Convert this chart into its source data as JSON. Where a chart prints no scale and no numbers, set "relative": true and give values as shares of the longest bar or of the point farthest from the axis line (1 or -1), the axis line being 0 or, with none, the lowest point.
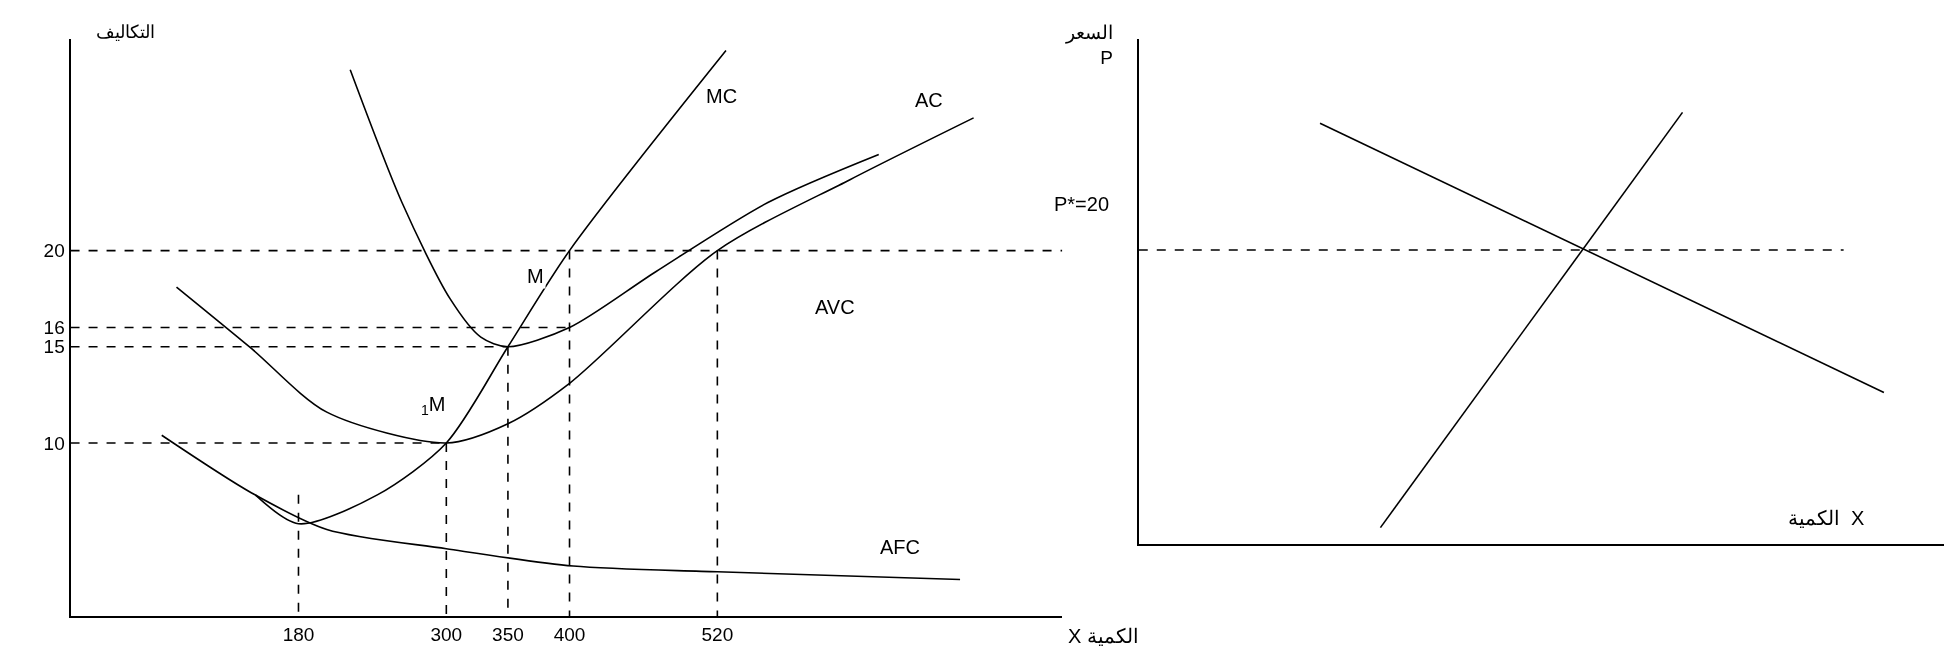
{
  "chart_data": [
    {
      "type": "line",
      "xlabel": "X الكمية",
      "ylabel": "التكاليف",
      "xlim": [
        -5,
        800
      ],
      "ylim": [
        1,
        31
      ],
      "xticks": [
        180,
        300,
        350,
        400,
        520
      ],
      "yticks": [
        20,
        16,
        15,
        10
      ],
      "series": [
        {
          "color": "#000000",
          "x": [
            145,
            180,
            244,
            300,
            350,
            400,
            527
          ],
          "values": [
            7.3,
            5.8,
            7.3,
            10,
            15,
            20,
            30.4
          ]
        },
        {
          "color": "#000000",
          "x": [
            81,
            142,
            203,
            300,
            350,
            400,
            520,
            628,
            728
          ],
          "values": [
            18.1,
            14.9,
            11.6,
            10,
            11,
            13.1,
            20,
            23.7,
            26.9
          ]
        },
        {
          "color": "#000000",
          "x": [
            222,
            264,
            303,
            328,
            350,
            400,
            470,
            561,
            651
          ],
          "values": [
            29.4,
            22.5,
            17.5,
            15.5,
            15,
            16,
            18.9,
            22.5,
            25
          ]
        },
        {
          "color": "#000000",
          "x": [
            69,
            142,
            203,
            300,
            403,
            520,
            717
          ],
          "values": [
            10.4,
            7.4,
            5.5,
            4.5,
            3.6,
            3.3,
            2.9
          ]
        },
        {
          "color": "#000000",
          "line_style": "dashed",
          "x": [
            -5,
            800
          ],
          "values": [
            20,
            20
          ]
        },
        {
          "color": "#000000",
          "line_style": "dashed",
          "x": [
            -5,
            400
          ],
          "values": [
            16,
            16
          ]
        },
        {
          "color": "#000000",
          "line_style": "dashed",
          "x": [
            -5,
            350
          ],
          "values": [
            15,
            15
          ]
        },
        {
          "color": "#000000",
          "line_style": "dashed",
          "x": [
            -5,
            300
          ],
          "values": [
            10,
            10
          ]
        },
        {
          "color": "#000000",
          "line_style": "dashed",
          "x": [
            180,
            180
          ],
          "values": [
            7.3,
            1
          ]
        },
        {
          "color": "#000000",
          "line_style": "dashed",
          "x": [
            300,
            300
          ],
          "values": [
            10,
            1
          ]
        },
        {
          "color": "#000000",
          "line_style": "dashed",
          "x": [
            350,
            350
          ],
          "values": [
            15,
            1
          ]
        },
        {
          "color": "#000000",
          "line_style": "dashed",
          "x": [
            400,
            400
          ],
          "values": [
            20,
            1
          ]
        },
        {
          "color": "#000000",
          "line_style": "dashed",
          "x": [
            520,
            520
          ],
          "values": [
            20,
            1
          ]
        }
      ],
      "annotations": [
        "MC",
        "AC",
        "AVC",
        "AFC",
        "M",
        "$_{1}$M"
      ]
    },
    {
      "type": "line",
      "xlabel": "الكمية  X",
      "ylabel": "السعر\nP",
      "categories": [
        null,
        null,
        null,
        null,
        null,
        null,
        null,
        null,
        null,
        null,
        null,
        null,
        null,
        null,
        null,
        null,
        null,
        null,
        null,
        null,
        null,
        null,
        null,
        null,
        null,
        null,
        null,
        null,
        null,
        null,
        null,
        null,
        null,
        null,
        null,
        null,
        null,
        null,
        null,
        null,
        null
      ],
      "relative": true,
      "annotations": [
        "P*=20"
      ],
      "series": [
        {
          "color": "#000000",
          "values": [
            null,
            null,
            null,
            null,
            null,
            null,
            null,
            null,
            null,
            0.975,
            null,
            null,
            null,
            null,
            null,
            null,
            null,
            null,
            null,
            null,
            null,
            null,
            null,
            null,
            null,
            null,
            null,
            null,
            null,
            null,
            null,
            null,
            null,
            null,
            null,
            null,
            null,
            0.351,
            null,
            null,
            null
          ]
        },
        {
          "color": "#000000",
          "values": [
            null,
            null,
            null,
            null,
            null,
            null,
            null,
            null,
            null,
            null,
            null,
            null,
            0.038,
            null,
            null,
            null,
            null,
            null,
            null,
            null,
            null,
            null,
            null,
            null,
            null,
            null,
            null,
            1,
            null,
            null,
            null,
            null,
            null,
            null,
            null,
            null,
            null,
            null,
            null,
            null,
            null
          ]
        },
        {
          "color": "#000000",
          "line_style": "dashed",
          "values": [
            0.681,
            null,
            null,
            null,
            null,
            null,
            null,
            null,
            null,
            null,
            null,
            null,
            null,
            null,
            null,
            null,
            null,
            null,
            null,
            null,
            null,
            null,
            null,
            null,
            null,
            null,
            null,
            null,
            null,
            null,
            null,
            null,
            null,
            null,
            null,
            0.681,
            null,
            null,
            null,
            null,
            null
          ]
        }
      ]
    }
  ]
}
